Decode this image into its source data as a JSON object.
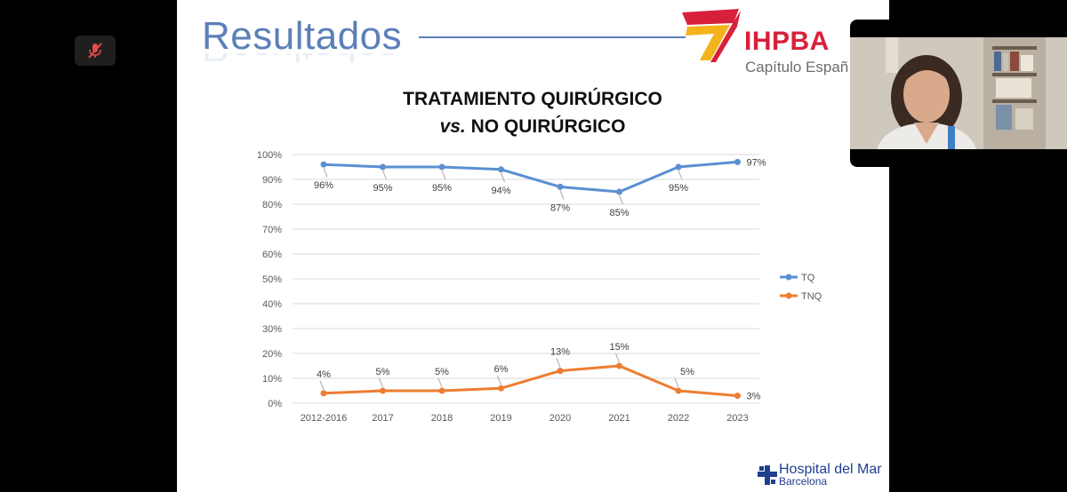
{
  "slide": {
    "title": "Resultados",
    "logo": {
      "brand": "IHPBA",
      "subtitle": "Capítulo Españ"
    },
    "chart_title_line1": "TRATAMIENTO QUIRÚRGICO",
    "chart_title_vs": "vs.",
    "chart_title_line2_rest": " NO QUIRÚRGICO",
    "footer_logo": {
      "name": "Hospital del Mar",
      "city": "Barcelona"
    }
  },
  "controls": {
    "mute_icon": "microphone-muted-icon"
  },
  "colors": {
    "tq": "#5b8fd1",
    "tnq": "#ed7d31",
    "title": "#5b7fb9",
    "brand_red": "#d8203a",
    "hospital_blue": "#1f3f8f"
  },
  "chart_data": {
    "type": "line",
    "categories": [
      "2012-2016",
      "2017",
      "2018",
      "2019",
      "2020",
      "2021",
      "2022",
      "2023"
    ],
    "y_ticks": [
      "0%",
      "10%",
      "20%",
      "30%",
      "40%",
      "50%",
      "60%",
      "70%",
      "80%",
      "90%",
      "100%"
    ],
    "ylim": [
      0,
      100
    ],
    "grid": true,
    "legend_position": "right",
    "series": [
      {
        "name": "TQ",
        "values": [
          96,
          95,
          95,
          94,
          87,
          85,
          95,
          97
        ],
        "labels": [
          "96%",
          "95%",
          "95%",
          "94%",
          "87%",
          "85%",
          "95%",
          "97%"
        ],
        "color": "#5b8fd1"
      },
      {
        "name": "TNQ",
        "values": [
          4,
          5,
          5,
          6,
          13,
          15,
          5,
          3
        ],
        "labels": [
          "4%",
          "5%",
          "5%",
          "6%",
          "13%",
          "15%",
          "5%",
          "3%"
        ],
        "color": "#ed7d31"
      }
    ]
  }
}
